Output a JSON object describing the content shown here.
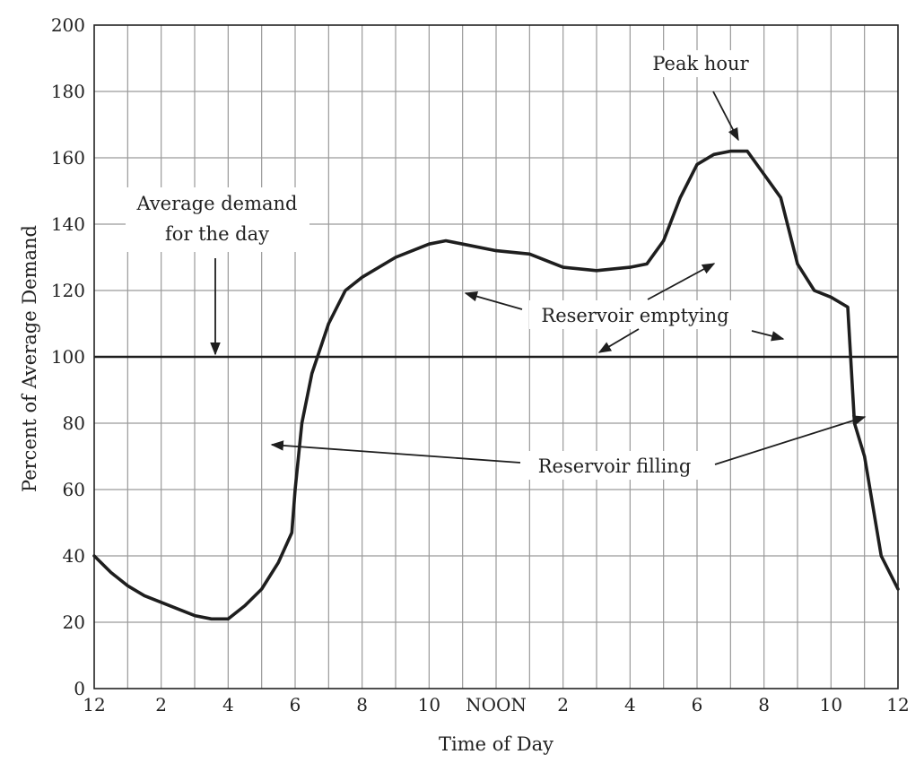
{
  "chart_data": {
    "type": "line",
    "xlabel": "Time of Day",
    "ylabel": "Percent of Average Demand",
    "xlim": [
      0,
      24
    ],
    "ylim": [
      0,
      200
    ],
    "grid": true,
    "x_ticks": [
      {
        "x": 0,
        "label": "12"
      },
      {
        "x": 2,
        "label": "2"
      },
      {
        "x": 4,
        "label": "4"
      },
      {
        "x": 6,
        "label": "6"
      },
      {
        "x": 8,
        "label": "8"
      },
      {
        "x": 10,
        "label": "10"
      },
      {
        "x": 12,
        "label": "NOON"
      },
      {
        "x": 14,
        "label": "2"
      },
      {
        "x": 16,
        "label": "4"
      },
      {
        "x": 18,
        "label": "6"
      },
      {
        "x": 20,
        "label": "8"
      },
      {
        "x": 22,
        "label": "10"
      },
      {
        "x": 24,
        "label": "12"
      }
    ],
    "y_ticks": [
      0,
      20,
      40,
      60,
      80,
      100,
      120,
      140,
      160,
      180,
      200
    ],
    "average_line": 100,
    "series": [
      {
        "x": [
          0,
          0.5,
          1,
          1.5,
          2,
          2.5,
          3,
          3.5,
          4,
          4.5,
          5,
          5.5,
          5.9,
          6,
          6.2,
          6.5,
          7,
          7.5,
          8,
          9,
          10,
          10.5,
          11,
          12,
          13,
          14,
          15,
          16,
          16.5,
          17,
          17.5,
          18,
          18.5,
          19,
          19.5,
          20,
          20.5,
          21,
          21.5,
          22,
          22.5,
          22.7,
          23,
          23.5,
          24
        ],
        "y": [
          40,
          35,
          31,
          28,
          26,
          24,
          22,
          21,
          21,
          25,
          30,
          38,
          47,
          60,
          80,
          95,
          110,
          120,
          124,
          130,
          134,
          135,
          134,
          132,
          131,
          127,
          126,
          127,
          128,
          135,
          148,
          158,
          161,
          162,
          162,
          155,
          148,
          128,
          120,
          118,
          115,
          80,
          70,
          40,
          30
        ]
      }
    ],
    "annotations": {
      "average_label_line1": "Average demand",
      "average_label_line2": "for the day",
      "peak_label": "Peak hour",
      "emptying_label": "Reservoir emptying",
      "filling_label": "Reservoir filling"
    }
  }
}
